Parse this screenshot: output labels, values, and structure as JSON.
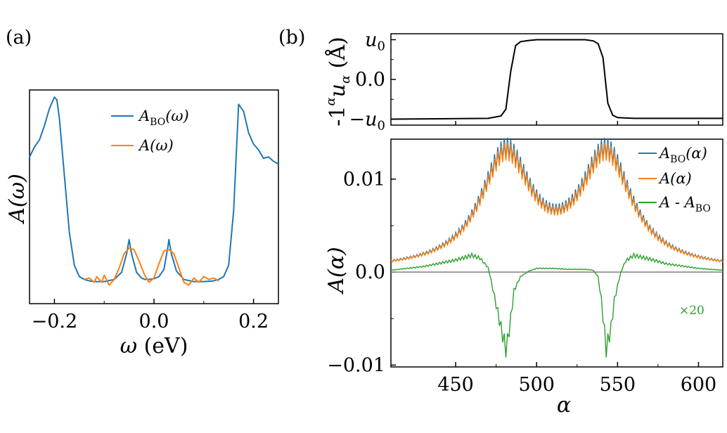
{
  "chart_data": [
    {
      "panel_label": "(a)",
      "type": "line",
      "xlabel": "ω (eV)",
      "ylabel": "A(ω)",
      "xlim": [
        -0.25,
        0.25
      ],
      "ylim": [
        -0.15,
        1.35
      ],
      "xticks": [
        {
          "value": -0.2,
          "label": "−0.2"
        },
        {
          "value": 0.0,
          "label": "0.0"
        },
        {
          "value": 0.2,
          "label": "0.2"
        }
      ],
      "legend_position": "top-center",
      "series": [
        {
          "name": "A_BO(ω)",
          "name_html_main": "A",
          "name_sub": "BO",
          "name_tail": "(ω)",
          "color": "#1f77b4",
          "x": [
            -0.25,
            -0.24,
            -0.23,
            -0.22,
            -0.21,
            -0.2,
            -0.195,
            -0.19,
            -0.18,
            -0.17,
            -0.16,
            -0.15,
            -0.14,
            -0.13,
            -0.12,
            -0.1,
            -0.08,
            -0.065,
            -0.055,
            -0.05,
            -0.045,
            -0.035,
            -0.025,
            -0.018,
            -0.01,
            0.0,
            0.01,
            0.02,
            0.028,
            0.03,
            0.035,
            0.045,
            0.06,
            0.08,
            0.1,
            0.12,
            0.13,
            0.14,
            0.15,
            0.16,
            0.17,
            0.18,
            0.19,
            0.2,
            0.21,
            0.22,
            0.23,
            0.24,
            0.25
          ],
          "y": [
            0.88,
            0.95,
            1.0,
            1.1,
            1.22,
            1.3,
            1.28,
            1.15,
            0.75,
            0.35,
            0.12,
            0.04,
            0.02,
            0.01,
            0.005,
            0.005,
            0.02,
            0.07,
            0.2,
            0.3,
            0.2,
            0.07,
            0.03,
            0.02,
            0.02,
            0.025,
            0.04,
            0.09,
            0.25,
            0.3,
            0.2,
            0.08,
            0.02,
            0.005,
            0.005,
            0.01,
            0.02,
            0.04,
            0.12,
            0.5,
            1.25,
            1.2,
            1.05,
            0.97,
            0.93,
            0.87,
            0.88,
            0.85,
            0.83
          ]
        },
        {
          "name": "A(ω)",
          "name_html_main": "A",
          "name_sub": "",
          "name_tail": "(ω)",
          "color": "#ff7f0e",
          "x": [
            -0.14,
            -0.13,
            -0.12,
            -0.115,
            -0.105,
            -0.1,
            -0.09,
            -0.08,
            -0.07,
            -0.06,
            -0.05,
            -0.04,
            -0.03,
            -0.02,
            -0.01,
            0.0,
            0.01,
            0.02,
            0.03,
            0.04,
            0.05,
            0.06,
            0.07,
            0.08,
            0.09,
            0.1,
            0.11,
            0.12,
            0.13
          ],
          "y": [
            0.02,
            0.03,
            0.0,
            0.04,
            0.0,
            0.05,
            -0.02,
            0.02,
            0.1,
            0.2,
            0.24,
            0.23,
            0.15,
            0.06,
            0.0,
            0.03,
            0.13,
            0.22,
            0.23,
            0.2,
            0.1,
            0.0,
            -0.02,
            0.03,
            0.0,
            0.04,
            0.02,
            0.03,
            0.01
          ]
        }
      ]
    },
    {
      "panel_label": "(b)",
      "type": "line",
      "xlabel": "",
      "ylabel": "-1^α u_α (Å)",
      "ylabel_parts": {
        "prefix": "-1",
        "sup": "α",
        "main": "u",
        "sub": "α",
        "tail": " (Å)"
      },
      "xlim": [
        410,
        615
      ],
      "ylim": [
        -1.15,
        1.15
      ],
      "yticks": [
        {
          "value": 1,
          "label": "u",
          "sub": "0",
          "sign": ""
        },
        {
          "value": 0,
          "label": "0.0",
          "sub": "",
          "sign": ""
        },
        {
          "value": -1,
          "label": "u",
          "sub": "0",
          "sign": "−"
        }
      ],
      "series": [
        {
          "name": "-1^α u_α",
          "color": "#000000",
          "x": [
            410,
            470,
            478,
            481,
            484,
            487,
            490,
            495,
            500,
            510,
            520,
            530,
            535,
            538,
            541,
            544,
            547,
            550,
            560,
            615
          ],
          "y": [
            -1.0,
            -0.98,
            -0.92,
            -0.75,
            0.2,
            0.85,
            0.95,
            0.98,
            1.0,
            1.0,
            1.0,
            1.0,
            0.97,
            0.9,
            0.55,
            -0.6,
            -0.9,
            -0.96,
            -0.98,
            -0.98
          ]
        }
      ]
    },
    {
      "panel_label": "",
      "type": "line",
      "xlabel": "α",
      "ylabel": "A(α)",
      "xlim": [
        410,
        615
      ],
      "ylim": [
        -0.0102,
        0.0143
      ],
      "xticks": [
        {
          "value": 450,
          "label": "450"
        },
        {
          "value": 500,
          "label": "500"
        },
        {
          "value": 550,
          "label": "550"
        },
        {
          "value": 600,
          "label": "600"
        }
      ],
      "yticks": [
        {
          "value": 0.01,
          "label": "0.01"
        },
        {
          "value": 0.0,
          "label": "0.0"
        },
        {
          "value": -0.01,
          "label": "−0.01"
        }
      ],
      "annotation": "×20",
      "legend_position": "top-right",
      "baseline": {
        "value": 0.0,
        "color": "#888888"
      },
      "series": [
        {
          "name": "A_BO(α)",
          "name_html_main": "A",
          "name_sub": "BO",
          "name_tail": "(α)",
          "color": "#1f77b4",
          "envelope": {
            "peaks": [
              481,
              543
            ],
            "height": 0.0122,
            "width": 38,
            "floor": 0.00015
          },
          "oscillation": 0.0011
        },
        {
          "name": "A(α)",
          "name_html_main": "A",
          "name_sub": "",
          "name_tail": "(α)",
          "color": "#ff7f0e",
          "envelope": {
            "peaks": [
              481,
              543
            ],
            "height": 0.0118,
            "width": 38,
            "floor": 0.00015
          },
          "oscillation": 0.001
        },
        {
          "name": "A - A_BO",
          "name_html_main": "A - A",
          "name_sub": "BO",
          "name_tail": "",
          "color": "#2ca02c",
          "x": [
            410,
            430,
            450,
            460,
            465,
            470,
            472,
            475,
            478,
            480,
            481,
            482,
            484,
            486,
            490,
            495,
            500,
            510,
            520,
            530,
            535,
            538,
            540,
            542,
            543,
            544,
            546,
            548,
            552,
            555,
            560,
            570,
            580,
            600,
            615
          ],
          "y": [
            0.0002,
            0.0006,
            0.0013,
            0.0018,
            0.0015,
            0.0005,
            -0.001,
            -0.0035,
            -0.006,
            -0.0075,
            -0.0082,
            -0.0075,
            -0.005,
            -0.002,
            -0.0005,
            0.0001,
            0.0004,
            0.0004,
            0.0003,
            0.0003,
            0.0002,
            -0.0005,
            -0.003,
            -0.0065,
            -0.0082,
            -0.0075,
            -0.006,
            -0.003,
            0.0,
            0.0012,
            0.0018,
            0.0014,
            0.0009,
            0.0004,
            0.0002
          ]
        }
      ]
    }
  ]
}
